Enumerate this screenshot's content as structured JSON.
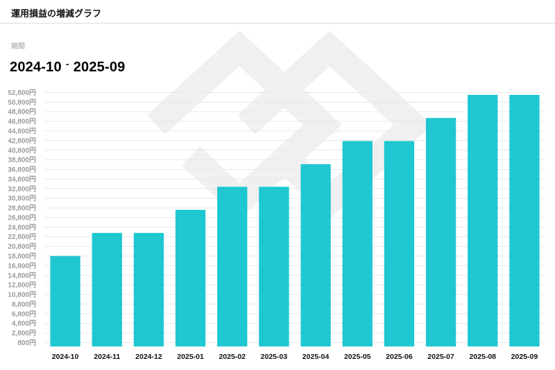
{
  "header": {
    "title": "運用損益の増減グラフ"
  },
  "period": {
    "label": "期間",
    "start": "2024-10",
    "separator": "-",
    "end": "2025-09"
  },
  "colors": {
    "bar": "#1fc7d0",
    "grid": "#e7e7e7",
    "tick": "#9b9b9b",
    "watermark": "#f0f0f0"
  },
  "chart_data": {
    "type": "bar",
    "categories": [
      "2024-10",
      "2024-11",
      "2024-12",
      "2025-01",
      "2025-02",
      "2025-03",
      "2025-04",
      "2025-05",
      "2025-06",
      "2025-07",
      "2025-08",
      "2025-09"
    ],
    "values": [
      18800,
      23600,
      23600,
      28400,
      33200,
      33200,
      37900,
      42700,
      42700,
      47500,
      52300,
      52300
    ],
    "ylim": [
      0,
      53300
    ],
    "yticks": [
      800,
      2800,
      4800,
      6800,
      8800,
      10800,
      12800,
      14800,
      16800,
      18800,
      20800,
      22800,
      24800,
      26800,
      28800,
      30800,
      32800,
      34800,
      36800,
      38800,
      40800,
      42800,
      44800,
      46800,
      48800,
      50800,
      52800
    ],
    "ytick_labels": [
      "800円",
      "2,800円",
      "4,800円",
      "6,800円",
      "8,800円",
      "10,800円",
      "12,800円",
      "14,800円",
      "16,800円",
      "18,800円",
      "20,800円",
      "22,800円",
      "24,800円",
      "26,800円",
      "28,800円",
      "30,800円",
      "32,800円",
      "34,800円",
      "36,800円",
      "38,800円",
      "40,800円",
      "42,800円",
      "44,800円",
      "46,800円",
      "48,800円",
      "50,800円",
      "52,800円"
    ],
    "grid": true,
    "title": "",
    "xlabel": "",
    "ylabel": ""
  }
}
